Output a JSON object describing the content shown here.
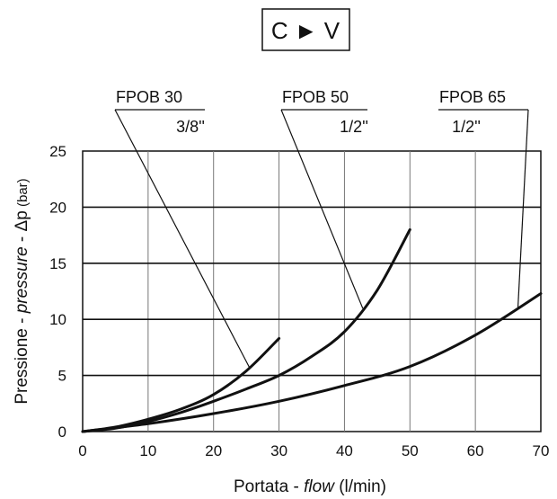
{
  "chart_data": {
    "type": "line",
    "title": "C ► V",
    "xlabel_parts": [
      "Portata - ",
      "flow",
      " (l/min)"
    ],
    "ylabel_parts": [
      "Pressione - ",
      "pressure",
      " - ",
      "Δ",
      "p",
      " (bar)"
    ],
    "xlim": [
      0,
      70
    ],
    "ylim": [
      0,
      25
    ],
    "x_ticks": [
      0,
      10,
      20,
      30,
      40,
      50,
      60,
      70
    ],
    "y_ticks": [
      0,
      5,
      10,
      15,
      20,
      25
    ],
    "grid": true,
    "series": [
      {
        "name": "FPOB 30",
        "size": "3/8''",
        "x": [
          0,
          5,
          10,
          15,
          20,
          25,
          30
        ],
        "y": [
          0,
          0.4,
          1.1,
          2.0,
          3.3,
          5.4,
          8.3
        ]
      },
      {
        "name": "FPOB 50",
        "size": "1/2''",
        "x": [
          0,
          5,
          10,
          15,
          20,
          25,
          30,
          35,
          40,
          45,
          50
        ],
        "y": [
          0,
          0.3,
          0.9,
          1.7,
          2.7,
          3.8,
          5.0,
          6.7,
          8.9,
          12.6,
          18.0
        ]
      },
      {
        "name": "FPOB 65",
        "size": "1/2''",
        "x": [
          0,
          10,
          20,
          30,
          40,
          50,
          60,
          70
        ],
        "y": [
          0,
          0.7,
          1.6,
          2.7,
          4.1,
          5.8,
          8.6,
          12.3
        ]
      }
    ]
  }
}
